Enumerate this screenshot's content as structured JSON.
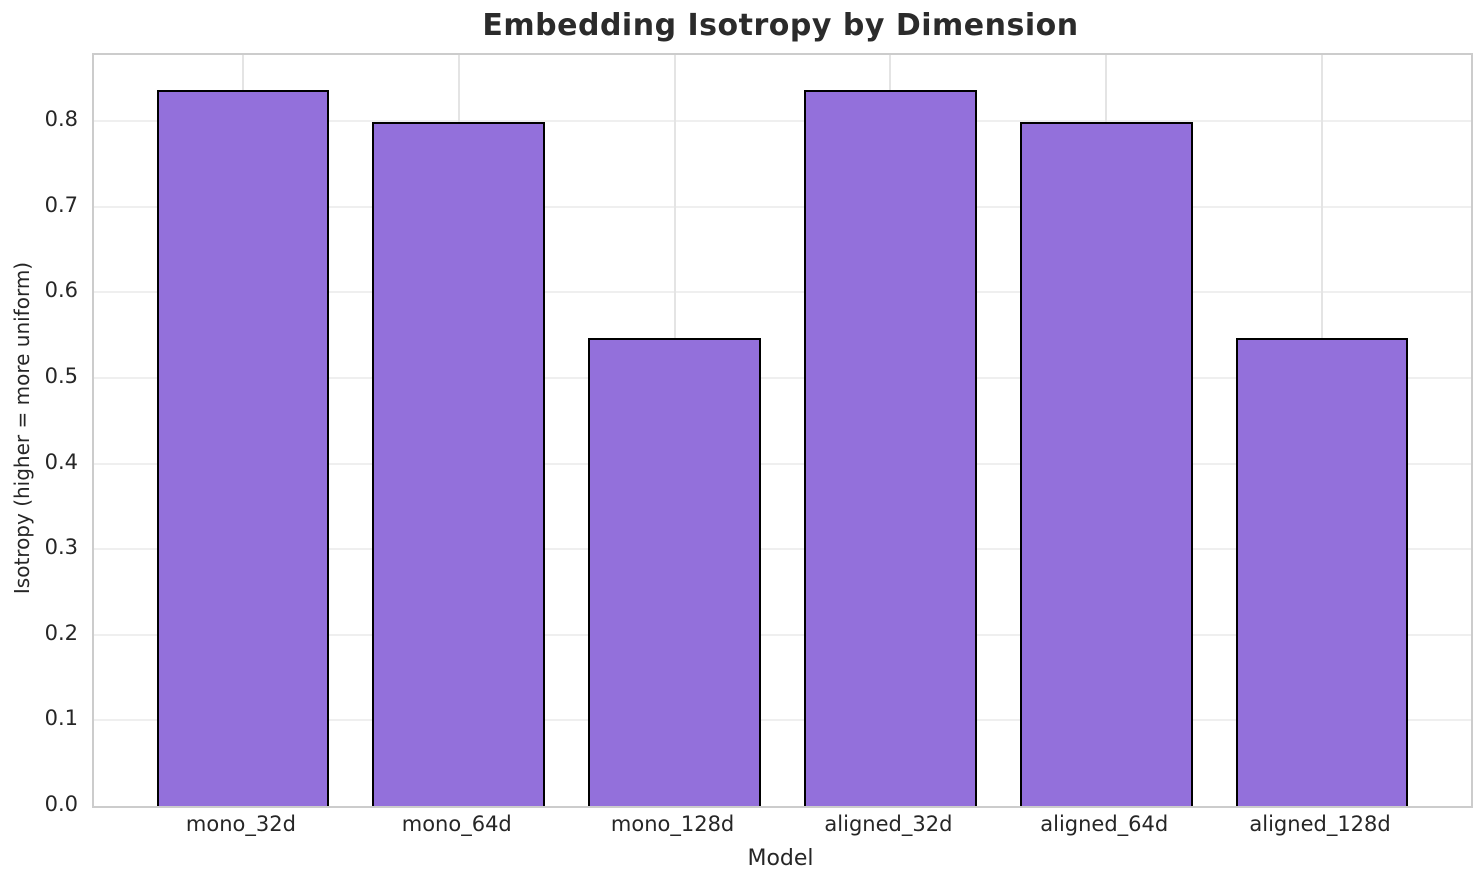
{
  "chart_data": {
    "type": "bar",
    "title": "Embedding Isotropy by Dimension",
    "xlabel": "Model",
    "ylabel": "Isotropy (higher = more uniform)",
    "categories": [
      "mono_32d",
      "mono_64d",
      "mono_128d",
      "aligned_32d",
      "aligned_64d",
      "aligned_128d"
    ],
    "values": [
      0.837,
      0.799,
      0.547,
      0.837,
      0.799,
      0.547
    ],
    "ylim": [
      0,
      0.8775
    ],
    "yticks": [
      0,
      0.1,
      0.2,
      0.3,
      0.4,
      0.5,
      0.6,
      0.7,
      0.8
    ],
    "ytick_labels": [
      "0.0",
      "0.1",
      "0.2",
      "0.3",
      "0.4",
      "0.5",
      "0.6",
      "0.7",
      "0.8"
    ],
    "xlim_units": [
      -0.69,
      5.69
    ],
    "bar_width_units": 0.8,
    "grid": true,
    "legend": null,
    "colors": {
      "bar_fill": "#9370DB",
      "bar_edge": "#000000",
      "grid_h": "#efefef",
      "grid_v": "#e4e4e4",
      "spine": "#cccccc",
      "text": "#262626",
      "title": "#2b2b2b",
      "background": "#ffffff"
    }
  }
}
